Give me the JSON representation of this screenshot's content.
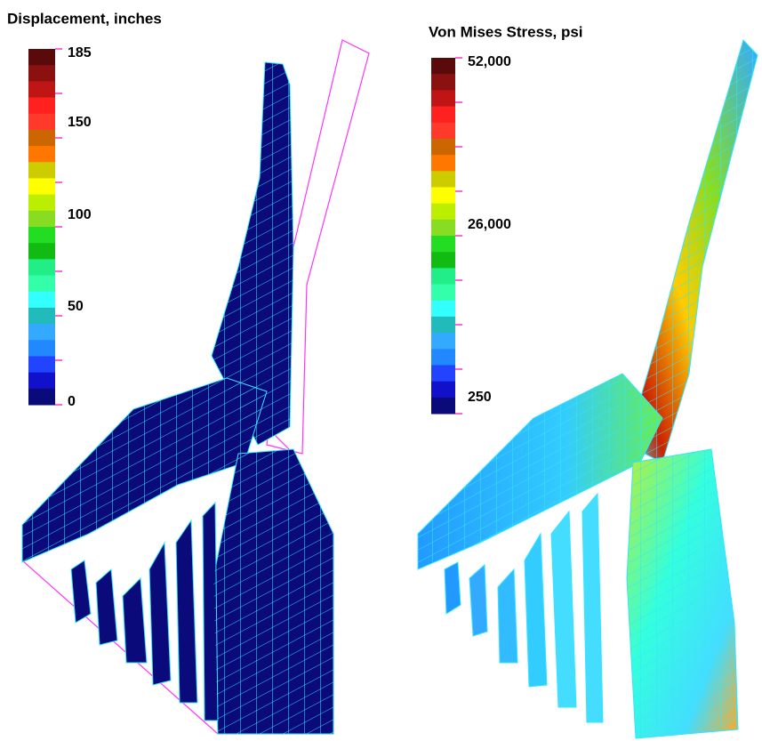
{
  "panels": [
    {
      "title": "Displacement, inches",
      "scale_labels": [
        "185",
        "150",
        "100",
        "50",
        "0"
      ]
    },
    {
      "title": "Von Mises Stress, psi",
      "scale_labels": [
        "52,000",
        "26,000",
        "250"
      ]
    }
  ]
}
